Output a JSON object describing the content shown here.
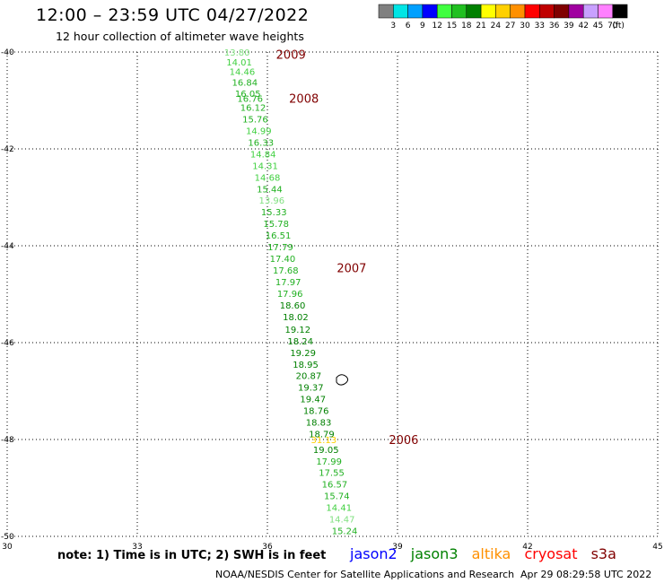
{
  "header": {
    "title": "12:00 – 23:59 UTC 04/27/2022",
    "subtitle": "12 hour collection of altimeter wave heights"
  },
  "legend": {
    "colors": [
      "#808080",
      "#00e5e5",
      "#00a0ff",
      "#0000ff",
      "#40ff40",
      "#20c020",
      "#008000",
      "#ffff00",
      "#ffd000",
      "#ff9000",
      "#ff0000",
      "#c00000",
      "#800000",
      "#a000a0",
      "#c8a0ff",
      "#ff80ff",
      "#000000"
    ],
    "labels": [
      "3",
      "6",
      "9",
      "12",
      "15",
      "18",
      "21",
      "24",
      "27",
      "30",
      "33",
      "36",
      "39",
      "42",
      "45",
      "70"
    ],
    "unit": "(ft)"
  },
  "footer": {
    "note": "note:  1) Time is in UTC;  2) SWH is in feet",
    "satellites": [
      {
        "name": "jason2",
        "color": "#0000ff"
      },
      {
        "name": "jason3",
        "color": "#008000"
      },
      {
        "name": "altika",
        "color": "#ff9000"
      },
      {
        "name": "cryosat",
        "color": "#ff0000"
      },
      {
        "name": "s3a",
        "color": "#800000"
      }
    ],
    "credit": "NOAA/NESDIS Center for Satellite Applications and Research",
    "timestamp": "Apr 29 08:29:58 UTC 2022"
  },
  "chart_data": {
    "type": "scatter",
    "xlim": [
      30,
      45
    ],
    "ylim": [
      -50,
      -40
    ],
    "xticks": [
      30,
      33,
      36,
      39,
      42,
      45
    ],
    "yticks": [
      -40,
      -42,
      -44,
      -46,
      -48,
      -50
    ],
    "grid": true,
    "time_labels": [
      {
        "text": "2009",
        "x": 36.2,
        "y": -40.05
      },
      {
        "text": "2008",
        "x": 36.5,
        "y": -40.95
      },
      {
        "text": "2007",
        "x": 37.6,
        "y": -44.45
      },
      {
        "text": "2006",
        "x": 38.8,
        "y": -48.0
      }
    ],
    "points": [
      {
        "x": 35.3,
        "y": -40.0,
        "v": 13.8,
        "color": "#80e080"
      },
      {
        "x": 35.35,
        "y": -40.2,
        "v": 14.01,
        "color": "#40d040"
      },
      {
        "x": 35.42,
        "y": -40.4,
        "v": 14.46,
        "color": "#40d040"
      },
      {
        "x": 35.48,
        "y": -40.62,
        "v": 16.84,
        "color": "#20b020"
      },
      {
        "x": 35.55,
        "y": -40.85,
        "v": 16.05,
        "color": "#20b020"
      },
      {
        "x": 35.6,
        "y": -40.95,
        "v": 16.76,
        "color": "#20b020"
      },
      {
        "x": 35.67,
        "y": -41.14,
        "v": 16.12,
        "color": "#20b020"
      },
      {
        "x": 35.72,
        "y": -41.38,
        "v": 15.76,
        "color": "#20b020"
      },
      {
        "x": 35.8,
        "y": -41.62,
        "v": 14.99,
        "color": "#40d040"
      },
      {
        "x": 35.85,
        "y": -41.86,
        "v": 16.33,
        "color": "#20b020"
      },
      {
        "x": 35.9,
        "y": -42.1,
        "v": 14.84,
        "color": "#40d040"
      },
      {
        "x": 35.95,
        "y": -42.34,
        "v": 14.31,
        "color": "#40d040"
      },
      {
        "x": 36.0,
        "y": -42.58,
        "v": 14.68,
        "color": "#40d040"
      },
      {
        "x": 36.05,
        "y": -42.82,
        "v": 15.44,
        "color": "#20b020"
      },
      {
        "x": 36.1,
        "y": -43.06,
        "v": 13.96,
        "color": "#80e080"
      },
      {
        "x": 36.15,
        "y": -43.3,
        "v": 15.33,
        "color": "#20b020"
      },
      {
        "x": 36.2,
        "y": -43.54,
        "v": 15.78,
        "color": "#20b020"
      },
      {
        "x": 36.25,
        "y": -43.78,
        "v": 16.51,
        "color": "#20b020"
      },
      {
        "x": 36.3,
        "y": -44.02,
        "v": 17.79,
        "color": "#20b020"
      },
      {
        "x": 36.35,
        "y": -44.26,
        "v": 17.4,
        "color": "#20b020"
      },
      {
        "x": 36.42,
        "y": -44.5,
        "v": 17.68,
        "color": "#20b020"
      },
      {
        "x": 36.48,
        "y": -44.74,
        "v": 17.97,
        "color": "#20b020"
      },
      {
        "x": 36.52,
        "y": -44.98,
        "v": 17.96,
        "color": "#20b020"
      },
      {
        "x": 36.58,
        "y": -45.22,
        "v": 18.6,
        "color": "#008000"
      },
      {
        "x": 36.65,
        "y": -45.46,
        "v": 18.02,
        "color": "#008000"
      },
      {
        "x": 36.7,
        "y": -45.72,
        "v": 19.12,
        "color": "#008000"
      },
      {
        "x": 36.76,
        "y": -45.96,
        "v": 18.24,
        "color": "#008000"
      },
      {
        "x": 36.82,
        "y": -46.2,
        "v": 19.29,
        "color": "#008000"
      },
      {
        "x": 36.88,
        "y": -46.44,
        "v": 18.95,
        "color": "#008000"
      },
      {
        "x": 36.95,
        "y": -46.68,
        "v": 20.87,
        "color": "#008000"
      },
      {
        "x": 37.0,
        "y": -46.92,
        "v": 19.37,
        "color": "#008000"
      },
      {
        "x": 37.05,
        "y": -47.16,
        "v": 19.47,
        "color": "#008000"
      },
      {
        "x": 37.12,
        "y": -47.4,
        "v": 18.76,
        "color": "#008000"
      },
      {
        "x": 37.18,
        "y": -47.64,
        "v": 18.83,
        "color": "#008000"
      },
      {
        "x": 37.25,
        "y": -47.88,
        "v": 18.79,
        "color": "#008000"
      },
      {
        "x": 37.3,
        "y": -48.0,
        "v": 31.13,
        "color": "#ffd000"
      },
      {
        "x": 37.35,
        "y": -48.2,
        "v": 19.05,
        "color": "#008000"
      },
      {
        "x": 37.42,
        "y": -48.44,
        "v": 17.99,
        "color": "#20b020"
      },
      {
        "x": 37.48,
        "y": -48.68,
        "v": 17.55,
        "color": "#20b020"
      },
      {
        "x": 37.55,
        "y": -48.92,
        "v": 16.57,
        "color": "#20b020"
      },
      {
        "x": 37.6,
        "y": -49.16,
        "v": 15.74,
        "color": "#20b020"
      },
      {
        "x": 37.65,
        "y": -49.4,
        "v": 14.41,
        "color": "#40d040"
      },
      {
        "x": 37.72,
        "y": -49.64,
        "v": 14.47,
        "color": "#80e080"
      },
      {
        "x": 37.78,
        "y": -49.88,
        "v": 15.24,
        "color": "#20b020"
      }
    ]
  }
}
